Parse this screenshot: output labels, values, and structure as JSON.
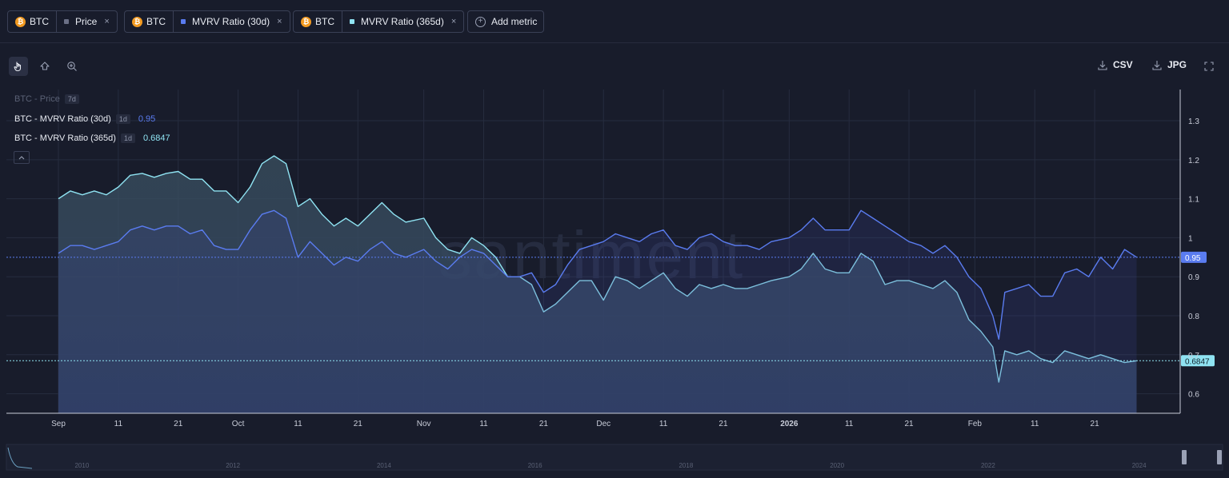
{
  "metrics": [
    {
      "asset": "BTC",
      "coin_symbol": "₿",
      "name": "Price",
      "color": "#6b7086"
    },
    {
      "asset": "BTC",
      "coin_symbol": "₿",
      "name": "MVRV Ratio (30d)",
      "color": "#5a7cf0"
    },
    {
      "asset": "BTC",
      "coin_symbol": "₿",
      "name": "MVRV Ratio (365d)",
      "color": "#8fe3f2"
    }
  ],
  "add_metric_label": "Add metric",
  "toolbar": {
    "csv_label": "CSV",
    "jpg_label": "JPG"
  },
  "legend": [
    {
      "name": "BTC - Price",
      "interval": "7d",
      "value": ""
    },
    {
      "name": "BTC - MVRV Ratio (30d)",
      "interval": "1d",
      "value": "0.95"
    },
    {
      "name": "BTC - MVRV Ratio (365d)",
      "interval": "1d",
      "value": "0.6847"
    }
  ],
  "watermark": "santiment",
  "chart_data": {
    "type": "area",
    "x_axis": {
      "start": "2025-09-01",
      "end": "2026-03-01",
      "ticks": [
        {
          "date": "2025-09-01",
          "label": "Sep",
          "bold": false
        },
        {
          "date": "2025-09-11",
          "label": "11",
          "bold": false
        },
        {
          "date": "2025-09-21",
          "label": "21",
          "bold": false
        },
        {
          "date": "2025-10-01",
          "label": "Oct",
          "bold": false
        },
        {
          "date": "2025-10-11",
          "label": "11",
          "bold": false
        },
        {
          "date": "2025-10-21",
          "label": "21",
          "bold": false
        },
        {
          "date": "2025-11-01",
          "label": "Nov",
          "bold": false
        },
        {
          "date": "2025-11-11",
          "label": "11",
          "bold": false
        },
        {
          "date": "2025-11-21",
          "label": "21",
          "bold": false
        },
        {
          "date": "2025-12-01",
          "label": "Dec",
          "bold": false
        },
        {
          "date": "2025-12-11",
          "label": "11",
          "bold": false
        },
        {
          "date": "2025-12-21",
          "label": "21",
          "bold": false
        },
        {
          "date": "2026-01-01",
          "label": "2026",
          "bold": true
        },
        {
          "date": "2026-01-11",
          "label": "11",
          "bold": false
        },
        {
          "date": "2026-01-21",
          "label": "21",
          "bold": false
        },
        {
          "date": "2026-02-01",
          "label": "Feb",
          "bold": false
        },
        {
          "date": "2026-02-11",
          "label": "11",
          "bold": false
        },
        {
          "date": "2026-02-21",
          "label": "21",
          "bold": false
        }
      ]
    },
    "y_axis": {
      "min": 0.55,
      "max": 1.38,
      "ticks": [
        0.6,
        0.7,
        0.8,
        0.9,
        1,
        1.1,
        1.2,
        1.3
      ],
      "tick_labels": [
        "0.6",
        "0.7",
        "0.8",
        "0.9",
        "1",
        "1.1",
        "1.2",
        "1.3"
      ]
    },
    "series": [
      {
        "name": "BTC - MVRV Ratio (365d)",
        "color": "#8fe3f2",
        "last_value_label": "0.6847",
        "points": [
          [
            "2025-09-01",
            1.1
          ],
          [
            "2025-09-03",
            1.12
          ],
          [
            "2025-09-05",
            1.11
          ],
          [
            "2025-09-07",
            1.12
          ],
          [
            "2025-09-09",
            1.11
          ],
          [
            "2025-09-11",
            1.13
          ],
          [
            "2025-09-13",
            1.16
          ],
          [
            "2025-09-15",
            1.165
          ],
          [
            "2025-09-17",
            1.155
          ],
          [
            "2025-09-19",
            1.165
          ],
          [
            "2025-09-21",
            1.17
          ],
          [
            "2025-09-23",
            1.15
          ],
          [
            "2025-09-25",
            1.15
          ],
          [
            "2025-09-27",
            1.12
          ],
          [
            "2025-09-29",
            1.12
          ],
          [
            "2025-10-01",
            1.09
          ],
          [
            "2025-10-03",
            1.13
          ],
          [
            "2025-10-05",
            1.19
          ],
          [
            "2025-10-07",
            1.21
          ],
          [
            "2025-10-09",
            1.19
          ],
          [
            "2025-10-11",
            1.08
          ],
          [
            "2025-10-13",
            1.1
          ],
          [
            "2025-10-15",
            1.06
          ],
          [
            "2025-10-17",
            1.03
          ],
          [
            "2025-10-19",
            1.05
          ],
          [
            "2025-10-21",
            1.03
          ],
          [
            "2025-10-23",
            1.06
          ],
          [
            "2025-10-25",
            1.09
          ],
          [
            "2025-10-27",
            1.06
          ],
          [
            "2025-10-29",
            1.04
          ],
          [
            "2025-11-01",
            1.05
          ],
          [
            "2025-11-03",
            1.0
          ],
          [
            "2025-11-05",
            0.97
          ],
          [
            "2025-11-07",
            0.96
          ],
          [
            "2025-11-09",
            1.0
          ],
          [
            "2025-11-11",
            0.98
          ],
          [
            "2025-11-13",
            0.95
          ],
          [
            "2025-11-15",
            0.9
          ],
          [
            "2025-11-17",
            0.9
          ],
          [
            "2025-11-19",
            0.88
          ],
          [
            "2025-11-21",
            0.81
          ],
          [
            "2025-11-23",
            0.83
          ],
          [
            "2025-11-25",
            0.86
          ],
          [
            "2025-11-27",
            0.89
          ],
          [
            "2025-11-29",
            0.89
          ],
          [
            "2025-12-01",
            0.84
          ],
          [
            "2025-12-03",
            0.9
          ],
          [
            "2025-12-05",
            0.89
          ],
          [
            "2025-12-07",
            0.87
          ],
          [
            "2025-12-09",
            0.89
          ],
          [
            "2025-12-11",
            0.91
          ],
          [
            "2025-12-13",
            0.87
          ],
          [
            "2025-12-15",
            0.85
          ],
          [
            "2025-12-17",
            0.88
          ],
          [
            "2025-12-19",
            0.87
          ],
          [
            "2025-12-21",
            0.88
          ],
          [
            "2025-12-23",
            0.87
          ],
          [
            "2025-12-25",
            0.87
          ],
          [
            "2025-12-27",
            0.88
          ],
          [
            "2025-12-29",
            0.89
          ],
          [
            "2026-01-01",
            0.9
          ],
          [
            "2026-01-03",
            0.92
          ],
          [
            "2026-01-05",
            0.96
          ],
          [
            "2026-01-07",
            0.92
          ],
          [
            "2026-01-09",
            0.91
          ],
          [
            "2026-01-11",
            0.91
          ],
          [
            "2026-01-13",
            0.96
          ],
          [
            "2026-01-15",
            0.94
          ],
          [
            "2026-01-17",
            0.88
          ],
          [
            "2026-01-19",
            0.89
          ],
          [
            "2026-01-21",
            0.89
          ],
          [
            "2026-01-23",
            0.88
          ],
          [
            "2026-01-25",
            0.87
          ],
          [
            "2026-01-27",
            0.89
          ],
          [
            "2026-01-29",
            0.86
          ],
          [
            "2026-01-31",
            0.79
          ],
          [
            "2026-02-02",
            0.76
          ],
          [
            "2026-02-04",
            0.72
          ],
          [
            "2026-02-05",
            0.63
          ],
          [
            "2026-02-06",
            0.71
          ],
          [
            "2026-02-08",
            0.7
          ],
          [
            "2026-02-10",
            0.71
          ],
          [
            "2026-02-12",
            0.69
          ],
          [
            "2026-02-14",
            0.68
          ],
          [
            "2026-02-16",
            0.71
          ],
          [
            "2026-02-18",
            0.7
          ],
          [
            "2026-02-20",
            0.69
          ],
          [
            "2026-02-22",
            0.7
          ],
          [
            "2026-02-24",
            0.69
          ],
          [
            "2026-02-26",
            0.68
          ],
          [
            "2026-02-28",
            0.6847
          ]
        ]
      },
      {
        "name": "BTC - MVRV Ratio (30d)",
        "color": "#5a7cf0",
        "last_value_label": "0.95",
        "points": [
          [
            "2025-09-01",
            0.96
          ],
          [
            "2025-09-03",
            0.98
          ],
          [
            "2025-09-05",
            0.98
          ],
          [
            "2025-09-07",
            0.97
          ],
          [
            "2025-09-09",
            0.98
          ],
          [
            "2025-09-11",
            0.99
          ],
          [
            "2025-09-13",
            1.02
          ],
          [
            "2025-09-15",
            1.03
          ],
          [
            "2025-09-17",
            1.02
          ],
          [
            "2025-09-19",
            1.03
          ],
          [
            "2025-09-21",
            1.03
          ],
          [
            "2025-09-23",
            1.01
          ],
          [
            "2025-09-25",
            1.02
          ],
          [
            "2025-09-27",
            0.98
          ],
          [
            "2025-09-29",
            0.97
          ],
          [
            "2025-10-01",
            0.97
          ],
          [
            "2025-10-03",
            1.02
          ],
          [
            "2025-10-05",
            1.06
          ],
          [
            "2025-10-07",
            1.07
          ],
          [
            "2025-10-09",
            1.05
          ],
          [
            "2025-10-11",
            0.95
          ],
          [
            "2025-10-13",
            0.99
          ],
          [
            "2025-10-15",
            0.96
          ],
          [
            "2025-10-17",
            0.93
          ],
          [
            "2025-10-19",
            0.95
          ],
          [
            "2025-10-21",
            0.94
          ],
          [
            "2025-10-23",
            0.97
          ],
          [
            "2025-10-25",
            0.99
          ],
          [
            "2025-10-27",
            0.96
          ],
          [
            "2025-10-29",
            0.95
          ],
          [
            "2025-11-01",
            0.97
          ],
          [
            "2025-11-03",
            0.94
          ],
          [
            "2025-11-05",
            0.92
          ],
          [
            "2025-11-07",
            0.95
          ],
          [
            "2025-11-09",
            0.97
          ],
          [
            "2025-11-11",
            0.96
          ],
          [
            "2025-11-13",
            0.93
          ],
          [
            "2025-11-15",
            0.9
          ],
          [
            "2025-11-17",
            0.9
          ],
          [
            "2025-11-19",
            0.91
          ],
          [
            "2025-11-21",
            0.86
          ],
          [
            "2025-11-23",
            0.88
          ],
          [
            "2025-11-25",
            0.93
          ],
          [
            "2025-11-27",
            0.97
          ],
          [
            "2025-11-29",
            0.98
          ],
          [
            "2025-12-01",
            0.99
          ],
          [
            "2025-12-03",
            1.01
          ],
          [
            "2025-12-05",
            1.0
          ],
          [
            "2025-12-07",
            0.99
          ],
          [
            "2025-12-09",
            1.01
          ],
          [
            "2025-12-11",
            1.02
          ],
          [
            "2025-12-13",
            0.98
          ],
          [
            "2025-12-15",
            0.97
          ],
          [
            "2025-12-17",
            1.0
          ],
          [
            "2025-12-19",
            1.01
          ],
          [
            "2025-12-21",
            0.99
          ],
          [
            "2025-12-23",
            0.98
          ],
          [
            "2025-12-25",
            0.98
          ],
          [
            "2025-12-27",
            0.97
          ],
          [
            "2025-12-29",
            0.99
          ],
          [
            "2026-01-01",
            1.0
          ],
          [
            "2026-01-03",
            1.02
          ],
          [
            "2026-01-05",
            1.05
          ],
          [
            "2026-01-07",
            1.02
          ],
          [
            "2026-01-09",
            1.02
          ],
          [
            "2026-01-11",
            1.02
          ],
          [
            "2026-01-13",
            1.07
          ],
          [
            "2026-01-15",
            1.05
          ],
          [
            "2026-01-17",
            1.03
          ],
          [
            "2026-01-19",
            1.01
          ],
          [
            "2026-01-21",
            0.99
          ],
          [
            "2026-01-23",
            0.98
          ],
          [
            "2026-01-25",
            0.96
          ],
          [
            "2026-01-27",
            0.98
          ],
          [
            "2026-01-29",
            0.95
          ],
          [
            "2026-01-31",
            0.9
          ],
          [
            "2026-02-02",
            0.87
          ],
          [
            "2026-02-04",
            0.8
          ],
          [
            "2026-02-05",
            0.74
          ],
          [
            "2026-02-06",
            0.86
          ],
          [
            "2026-02-08",
            0.87
          ],
          [
            "2026-02-10",
            0.88
          ],
          [
            "2026-02-12",
            0.85
          ],
          [
            "2026-02-14",
            0.85
          ],
          [
            "2026-02-16",
            0.91
          ],
          [
            "2026-02-18",
            0.92
          ],
          [
            "2026-02-20",
            0.9
          ],
          [
            "2026-02-22",
            0.95
          ],
          [
            "2026-02-24",
            0.92
          ],
          [
            "2026-02-26",
            0.97
          ],
          [
            "2026-02-28",
            0.95
          ]
        ]
      }
    ],
    "reference_lines": [
      {
        "value": 0.95,
        "color": "#5a7cf0"
      },
      {
        "value": 0.6847,
        "color": "#8fe3f2"
      }
    ],
    "grid": true,
    "navigator": {
      "year_labels": [
        "2010",
        "2012",
        "2014",
        "2016",
        "2018",
        "2020",
        "2022",
        "2024"
      ],
      "year_range": [
        2009,
        2025
      ]
    }
  }
}
